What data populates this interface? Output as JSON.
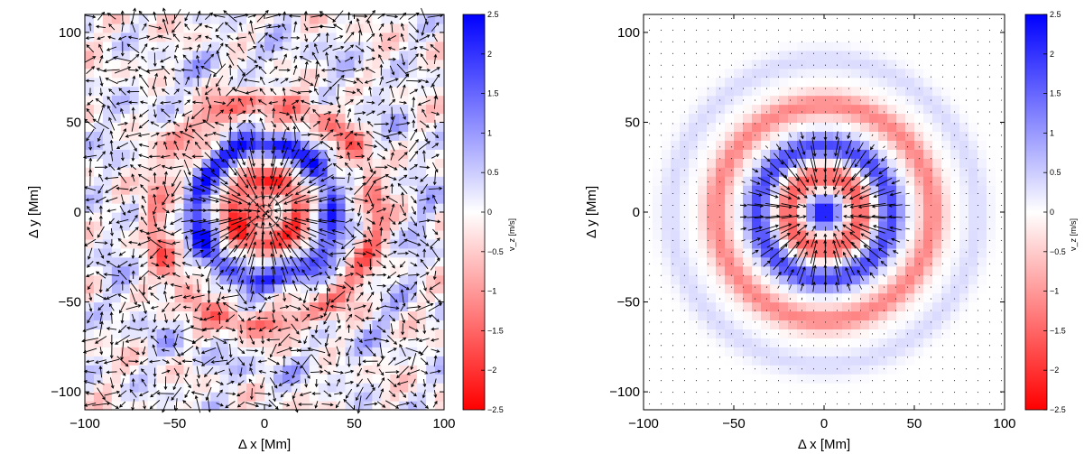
{
  "chart_data": [
    {
      "type": "heatmap",
      "subtype": "vector-field-overlay",
      "title": "",
      "xlabel": "Δ x [Mm]",
      "ylabel": "Δ y [Mm]",
      "xlim": [
        -100,
        100
      ],
      "ylim": [
        -110,
        110
      ],
      "x_ticks": [
        -100,
        -50,
        0,
        50,
        100
      ],
      "y_ticks": [
        -100,
        -50,
        0,
        50,
        100
      ],
      "colorbar": {
        "label": "v_z [m/s]",
        "range": [
          -2.5,
          2.5
        ],
        "ticks": [
          2.5,
          2,
          1.5,
          1,
          0.5,
          0,
          -0.5,
          -1,
          -1.5,
          -2,
          -2.5
        ],
        "positive_color": "#0000ff",
        "zero_color": "#ffffff",
        "negative_color": "#ff0000"
      },
      "field": {
        "description": "noisy observed flow: central red core, blue ring near r≈38 Mm, red ring near r≈65 Mm, with mottled background",
        "center": [
          0,
          0
        ],
        "rings": [
          {
            "radius": 0,
            "value": -1.2
          },
          {
            "radius": 18,
            "value": -1.8
          },
          {
            "radius": 38,
            "value": 2.0
          },
          {
            "radius": 62,
            "value": -1.2
          },
          {
            "radius": 90,
            "value": 0.4
          }
        ]
      },
      "grid": false
    },
    {
      "type": "heatmap",
      "subtype": "vector-field-overlay",
      "title": "",
      "xlabel": "Δ x [Mm]",
      "ylabel": "Δ y [Mm]",
      "xlim": [
        -100,
        100
      ],
      "ylim": [
        -110,
        110
      ],
      "x_ticks": [
        -100,
        -50,
        0,
        50,
        100
      ],
      "y_ticks": [
        -100,
        -50,
        0,
        50,
        100
      ],
      "colorbar": {
        "label": "v_z [m/s]",
        "range": [
          -2.5,
          2.5
        ],
        "ticks": [
          2.5,
          2,
          1.5,
          1,
          0.5,
          0,
          -0.5,
          -1,
          -1.5,
          -2,
          -2.5
        ],
        "positive_color": "#0000ff",
        "zero_color": "#ffffff",
        "negative_color": "#ff0000"
      },
      "field": {
        "description": "smooth model flow: blue core at center, red ring r≈15–25 Mm, blue ring r≈35 Mm, red ring r≈60 Mm, faint blue ring r≈85 Mm",
        "center": [
          0,
          0
        ],
        "rings": [
          {
            "radius": 0,
            "value": 2.5
          },
          {
            "radius": 20,
            "value": -1.6
          },
          {
            "radius": 37,
            "value": 1.8
          },
          {
            "radius": 60,
            "value": -1.2
          },
          {
            "radius": 85,
            "value": 0.35
          }
        ]
      },
      "grid": false
    }
  ]
}
